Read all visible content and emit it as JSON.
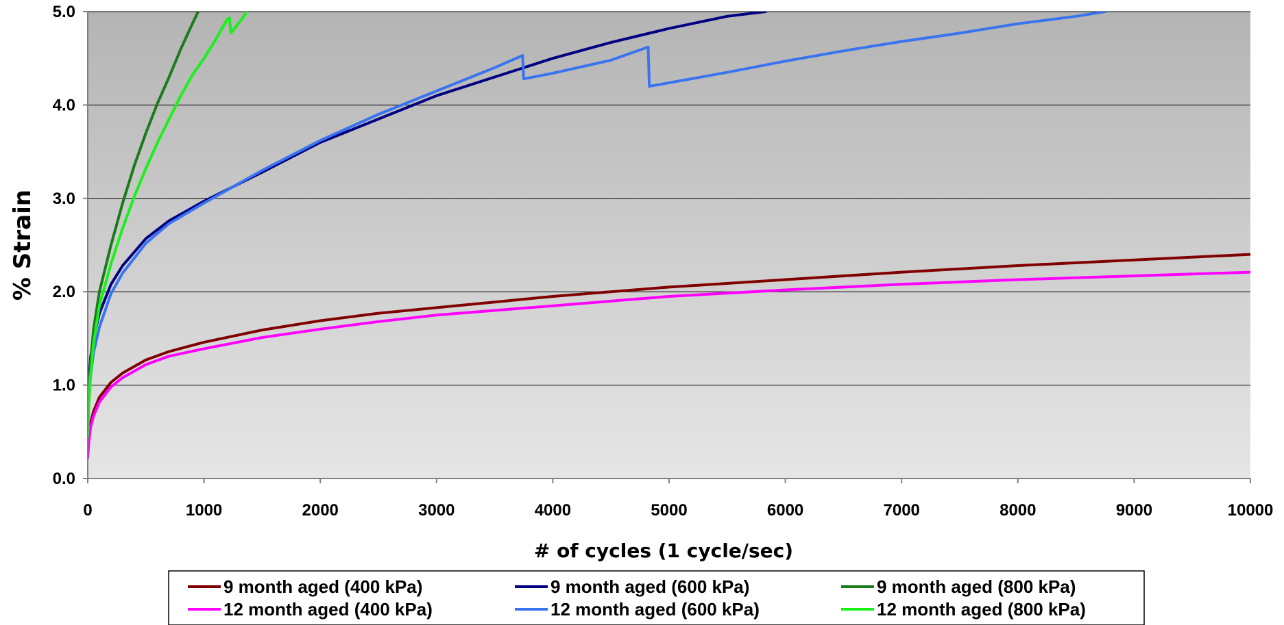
{
  "chart_data": {
    "type": "line",
    "title": "",
    "xlabel": "# of cycles (1 cycle/sec)",
    "ylabel": "% Strain",
    "xlim": [
      0,
      10000
    ],
    "ylim": [
      0.0,
      5.0
    ],
    "x_ticks": [
      "0",
      "1000",
      "2000",
      "3000",
      "4000",
      "5000",
      "6000",
      "7000",
      "8000",
      "9000",
      "10000"
    ],
    "y_ticks": [
      "0.0",
      "1.0",
      "2.0",
      "3.0",
      "4.0",
      "5.0"
    ],
    "grid": "horizontal",
    "legend_position": "bottom",
    "series": [
      {
        "name": "9 month aged (400 kPa)",
        "color": "#800000",
        "points": [
          [
            0,
            0.25
          ],
          [
            10,
            0.45
          ],
          [
            25,
            0.6
          ],
          [
            50,
            0.72
          ],
          [
            100,
            0.87
          ],
          [
            200,
            1.03
          ],
          [
            300,
            1.13
          ],
          [
            500,
            1.27
          ],
          [
            700,
            1.36
          ],
          [
            1000,
            1.46
          ],
          [
            1500,
            1.59
          ],
          [
            2000,
            1.69
          ],
          [
            2500,
            1.77
          ],
          [
            3000,
            1.83
          ],
          [
            3500,
            1.89
          ],
          [
            4000,
            1.95
          ],
          [
            5000,
            2.05
          ],
          [
            6000,
            2.13
          ],
          [
            7000,
            2.21
          ],
          [
            8000,
            2.28
          ],
          [
            9000,
            2.34
          ],
          [
            10000,
            2.4
          ]
        ]
      },
      {
        "name": "9 month aged (600 kPa)",
        "color": "#000080",
        "points": [
          [
            0,
            0.75
          ],
          [
            10,
            1.05
          ],
          [
            25,
            1.3
          ],
          [
            50,
            1.5
          ],
          [
            100,
            1.77
          ],
          [
            200,
            2.08
          ],
          [
            300,
            2.28
          ],
          [
            500,
            2.57
          ],
          [
            700,
            2.76
          ],
          [
            1000,
            2.97
          ],
          [
            1500,
            3.28
          ],
          [
            2000,
            3.6
          ],
          [
            2500,
            3.85
          ],
          [
            3000,
            4.1
          ],
          [
            3500,
            4.3
          ],
          [
            4000,
            4.5
          ],
          [
            4500,
            4.67
          ],
          [
            5000,
            4.82
          ],
          [
            5500,
            4.95
          ],
          [
            5830,
            5.0
          ]
        ]
      },
      {
        "name": "9 month aged (800 kPa)",
        "color": "#1B7A1B",
        "points": [
          [
            0,
            0.55
          ],
          [
            10,
            0.9
          ],
          [
            25,
            1.25
          ],
          [
            50,
            1.6
          ],
          [
            100,
            2.0
          ],
          [
            200,
            2.5
          ],
          [
            300,
            2.95
          ],
          [
            400,
            3.35
          ],
          [
            500,
            3.7
          ],
          [
            600,
            4.02
          ],
          [
            700,
            4.3
          ],
          [
            800,
            4.6
          ],
          [
            900,
            4.87
          ],
          [
            950,
            5.0
          ]
        ]
      },
      {
        "name": "12 month aged (400 kPa)",
        "color": "#FF00FF",
        "points": [
          [
            0,
            0.22
          ],
          [
            10,
            0.4
          ],
          [
            25,
            0.55
          ],
          [
            50,
            0.67
          ],
          [
            100,
            0.82
          ],
          [
            200,
            0.98
          ],
          [
            300,
            1.08
          ],
          [
            500,
            1.22
          ],
          [
            700,
            1.31
          ],
          [
            1000,
            1.39
          ],
          [
            1500,
            1.51
          ],
          [
            2000,
            1.6
          ],
          [
            2500,
            1.68
          ],
          [
            3000,
            1.75
          ],
          [
            3500,
            1.8
          ],
          [
            4000,
            1.85
          ],
          [
            5000,
            1.95
          ],
          [
            6000,
            2.02
          ],
          [
            7000,
            2.08
          ],
          [
            8000,
            2.13
          ],
          [
            9000,
            2.17
          ],
          [
            10000,
            2.21
          ]
        ]
      },
      {
        "name": "12 month aged (600 kPa)",
        "color": "#3A73F0",
        "points": [
          [
            0,
            0.6
          ],
          [
            10,
            0.85
          ],
          [
            25,
            1.1
          ],
          [
            50,
            1.35
          ],
          [
            100,
            1.62
          ],
          [
            200,
            1.98
          ],
          [
            300,
            2.2
          ],
          [
            500,
            2.52
          ],
          [
            700,
            2.73
          ],
          [
            1000,
            2.95
          ],
          [
            1500,
            3.3
          ],
          [
            2000,
            3.62
          ],
          [
            2500,
            3.9
          ],
          [
            3000,
            4.15
          ],
          [
            3500,
            4.4
          ],
          [
            3740,
            4.53
          ],
          [
            3750,
            4.28
          ],
          [
            4000,
            4.34
          ],
          [
            4500,
            4.48
          ],
          [
            4820,
            4.62
          ],
          [
            4830,
            4.2
          ],
          [
            5500,
            4.35
          ],
          [
            6000,
            4.47
          ],
          [
            6500,
            4.58
          ],
          [
            7000,
            4.68
          ],
          [
            7500,
            4.77
          ],
          [
            8000,
            4.87
          ],
          [
            8500,
            4.95
          ],
          [
            8750,
            5.0
          ]
        ]
      },
      {
        "name": "12 month aged (800 kPa)",
        "color": "#1AF01A",
        "points": [
          [
            0,
            0.45
          ],
          [
            10,
            0.8
          ],
          [
            25,
            1.1
          ],
          [
            50,
            1.45
          ],
          [
            100,
            1.85
          ],
          [
            200,
            2.3
          ],
          [
            300,
            2.68
          ],
          [
            400,
            3.02
          ],
          [
            500,
            3.32
          ],
          [
            600,
            3.6
          ],
          [
            700,
            3.85
          ],
          [
            800,
            4.1
          ],
          [
            900,
            4.32
          ],
          [
            1000,
            4.5
          ],
          [
            1100,
            4.7
          ],
          [
            1200,
            4.92
          ],
          [
            1220,
            4.93
          ],
          [
            1230,
            4.77
          ],
          [
            1300,
            4.88
          ],
          [
            1370,
            5.0
          ]
        ]
      }
    ]
  }
}
